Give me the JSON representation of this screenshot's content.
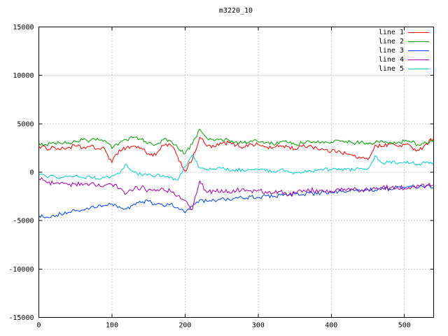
{
  "chart_data": {
    "type": "line",
    "title": "m3220_10",
    "xlabel": "",
    "ylabel": "",
    "xlim": [
      0,
      540
    ],
    "ylim": [
      -15000,
      15000
    ],
    "x_ticks": [
      0,
      100,
      200,
      300,
      400,
      500
    ],
    "y_ticks": [
      -15000,
      -10000,
      -5000,
      0,
      5000,
      10000,
      15000
    ],
    "grid": true,
    "grid_style": "dotted",
    "legend_position": "top-right-inside",
    "background_color": "#ffffff",
    "border_color": "#000000",
    "x_step": 10,
    "series": [
      {
        "name": "line 1",
        "color": "#ff0000",
        "noise_amplitude": 220,
        "values": [
          2700,
          2450,
          2600,
          2350,
          2550,
          2700,
          2500,
          2650,
          2450,
          2400,
          1000,
          2300,
          2550,
          2700,
          2500,
          1900,
          1750,
          2750,
          2850,
          1600,
          100,
          1300,
          3600,
          2700,
          2600,
          2950,
          3050,
          2800,
          2600,
          2900,
          2850,
          2600,
          2500,
          2750,
          2650,
          2400,
          2650,
          2750,
          2500,
          2300,
          2150,
          2250,
          1900,
          1700,
          1450,
          1300,
          2800,
          2650,
          2950,
          2700,
          2850,
          2600,
          2250,
          2950,
          3500
        ]
      },
      {
        "name": "line 2",
        "color": "#00a000",
        "noise_amplitude": 200,
        "values": [
          3000,
          2850,
          3100,
          2950,
          3050,
          3200,
          3350,
          3250,
          3500,
          3300,
          2450,
          3000,
          3350,
          3600,
          3400,
          3050,
          2850,
          3350,
          3250,
          2500,
          1900,
          2900,
          4450,
          3500,
          3250,
          3400,
          3300,
          3150,
          3050,
          3250,
          3150,
          3050,
          2950,
          3150,
          3050,
          2850,
          3000,
          3200,
          3100,
          3000,
          3100,
          3300,
          3200,
          3000,
          3100,
          2900,
          3050,
          3200,
          3100,
          3000,
          3200,
          3100,
          2800,
          3000,
          3300
        ]
      },
      {
        "name": "line 3",
        "color": "#0040ff",
        "noise_amplitude": 200,
        "values": [
          -4500,
          -4650,
          -4450,
          -4300,
          -4150,
          -4000,
          -3900,
          -3700,
          -3600,
          -3450,
          -3300,
          -3550,
          -3800,
          -3300,
          -3150,
          -3000,
          -3350,
          -3450,
          -3300,
          -3650,
          -4200,
          -3500,
          -2850,
          -3000,
          -2900,
          -2700,
          -2800,
          -2600,
          -2700,
          -2500,
          -2600,
          -2450,
          -2550,
          -2350,
          -2450,
          -2250,
          -2350,
          -2150,
          -2250,
          -2050,
          -2150,
          -1950,
          -2050,
          -1850,
          -1950,
          -1750,
          -1850,
          -1650,
          -1750,
          -1550,
          -1650,
          -1450,
          -1550,
          -1400,
          -1550
        ]
      },
      {
        "name": "line 4",
        "color": "#aa00aa",
        "noise_amplitude": 260,
        "values": [
          -700,
          -1000,
          -1200,
          -1100,
          -1300,
          -1200,
          -1350,
          -1250,
          -1400,
          -1350,
          -1300,
          -1700,
          -2200,
          -1750,
          -1600,
          -1800,
          -1950,
          -1700,
          -1950,
          -2450,
          -2900,
          -3850,
          -900,
          -2100,
          -1950,
          -1800,
          -2000,
          -1900,
          -1700,
          -1900,
          -1850,
          -2000,
          -2150,
          -2000,
          -2450,
          -2100,
          -2050,
          -1900,
          -1800,
          -2000,
          -1950,
          -1750,
          -1900,
          -1800,
          -1950,
          -1800,
          -1700,
          -1550,
          -1650,
          -1500,
          -1700,
          -1500,
          -1450,
          -1350,
          -1300
        ]
      },
      {
        "name": "line 5",
        "color": "#00cccc",
        "noise_amplitude": 180,
        "values": [
          -250,
          -450,
          -350,
          -550,
          -450,
          -350,
          -550,
          -450,
          -650,
          -550,
          -350,
          -150,
          800,
          0,
          -250,
          -200,
          -400,
          -300,
          -500,
          -800,
          600,
          1800,
          450,
          250,
          350,
          400,
          200,
          300,
          150,
          250,
          300,
          150,
          50,
          250,
          150,
          -50,
          0,
          200,
          150,
          300,
          250,
          400,
          300,
          250,
          400,
          350,
          1700,
          950,
          1150,
          850,
          1050,
          950,
          850,
          1050,
          1000
        ]
      }
    ]
  }
}
